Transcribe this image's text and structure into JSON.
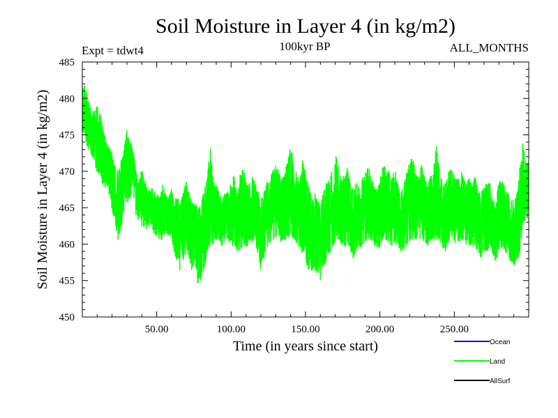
{
  "chart_data": {
    "type": "line",
    "title": "Soil Moisture in Layer 4 (in kg/m2)",
    "subtitle_left": "Expt = tdwt4",
    "subtitle_center": "100kyr BP",
    "subtitle_right": "ALL_MONTHS",
    "xlabel": "Time (in years since start)",
    "ylabel": "Soil Moisture in Layer 4 (in kg/m2)",
    "xlim": [
      0,
      300
    ],
    "ylim": [
      450,
      485
    ],
    "xticks": [
      50,
      100,
      150,
      200,
      250
    ],
    "xtick_labels": [
      "50.00",
      "100.00",
      "150.00",
      "200.00",
      "250.00"
    ],
    "yticks": [
      450,
      455,
      460,
      465,
      470,
      475,
      480,
      485
    ],
    "ytick_labels": [
      "450",
      "455",
      "460",
      "465",
      "470",
      "475",
      "480",
      "485"
    ],
    "legend": [
      {
        "name": "Ocean",
        "color": "#0000ff"
      },
      {
        "name": "Land",
        "color": "#00ff00"
      },
      {
        "name": "AllSurf",
        "color": "#000000"
      }
    ],
    "series": [
      {
        "name": "Land",
        "color": "#00ff00",
        "x": [
          0,
          2,
          4,
          6,
          8,
          10,
          12,
          14,
          16,
          18,
          20,
          22,
          24,
          26,
          28,
          30,
          32,
          34,
          36,
          38,
          40,
          42,
          44,
          46,
          48,
          50,
          52,
          54,
          56,
          58,
          60,
          62,
          64,
          66,
          68,
          70,
          72,
          74,
          76,
          78,
          80,
          82,
          84,
          86,
          88,
          90,
          92,
          94,
          96,
          98,
          100,
          102,
          104,
          106,
          108,
          110,
          112,
          114,
          116,
          118,
          120,
          122,
          124,
          126,
          128,
          130,
          132,
          134,
          136,
          138,
          140,
          142,
          144,
          146,
          148,
          150,
          152,
          154,
          156,
          158,
          160,
          162,
          164,
          166,
          168,
          170,
          172,
          174,
          176,
          178,
          180,
          182,
          184,
          186,
          188,
          190,
          192,
          194,
          196,
          198,
          200,
          202,
          204,
          206,
          208,
          210,
          212,
          214,
          216,
          218,
          220,
          222,
          224,
          226,
          228,
          230,
          232,
          234,
          236,
          238,
          240,
          242,
          244,
          246,
          248,
          250,
          252,
          254,
          256,
          258,
          260,
          262,
          264,
          266,
          268,
          270,
          272,
          274,
          276,
          278,
          280,
          282,
          284,
          286,
          288,
          290,
          292,
          294,
          296,
          298,
          300
        ],
        "min": [
          475.5,
          474.5,
          472.5,
          472.0,
          471.5,
          469.5,
          469.5,
          468.0,
          467.5,
          466.5,
          464.5,
          463.0,
          460.5,
          462.0,
          463.5,
          465.5,
          466.0,
          465.0,
          464.0,
          463.0,
          462.5,
          462.0,
          462.0,
          462.5,
          461.5,
          461.0,
          460.5,
          460.5,
          461.5,
          461.0,
          460.5,
          458.5,
          457.5,
          456.0,
          457.5,
          458.5,
          457.5,
          456.0,
          457.0,
          453.5,
          455.5,
          456.5,
          458.5,
          460.0,
          460.0,
          460.5,
          460.5,
          459.5,
          460.0,
          460.5,
          460.0,
          459.5,
          459.0,
          459.0,
          459.5,
          459.5,
          460.0,
          460.5,
          460.0,
          458.5,
          456.5,
          458.0,
          459.5,
          460.0,
          460.5,
          461.0,
          460.5,
          460.0,
          460.5,
          460.5,
          461.0,
          460.5,
          460.0,
          459.5,
          458.5,
          457.5,
          456.5,
          456.0,
          456.5,
          455.5,
          455.0,
          456.5,
          457.5,
          458.5,
          459.5,
          460.5,
          460.5,
          460.0,
          459.5,
          460.0,
          459.0,
          458.0,
          459.0,
          459.5,
          459.5,
          460.0,
          460.5,
          460.5,
          459.5,
          459.0,
          459.5,
          460.5,
          460.5,
          460.0,
          459.5,
          460.0,
          459.5,
          459.0,
          459.0,
          459.5,
          460.0,
          460.5,
          460.5,
          460.5,
          460.5,
          460.0,
          459.5,
          460.0,
          460.5,
          460.5,
          460.5,
          459.5,
          459.0,
          460.0,
          460.5,
          460.0,
          460.0,
          460.5,
          460.5,
          460.0,
          459.5,
          459.5,
          459.5,
          458.5,
          458.0,
          458.5,
          459.0,
          459.5,
          458.5,
          457.5,
          459.0,
          459.5,
          459.0,
          458.0,
          457.5,
          457.0,
          457.5,
          458.5,
          462.5,
          463.0,
          463.5
        ],
        "max": [
          481.5,
          482.5,
          480.0,
          478.5,
          478.5,
          479.0,
          478.0,
          476.5,
          474.0,
          473.5,
          472.5,
          471.0,
          470.0,
          471.5,
          473.0,
          476.0,
          474.5,
          473.0,
          470.5,
          468.5,
          470.5,
          469.0,
          467.5,
          468.0,
          467.5,
          467.0,
          466.5,
          468.5,
          467.0,
          466.5,
          467.5,
          466.5,
          466.5,
          465.5,
          467.5,
          468.5,
          467.0,
          466.0,
          465.5,
          465.0,
          466.0,
          467.5,
          469.5,
          473.5,
          469.0,
          468.5,
          467.0,
          466.5,
          467.0,
          467.5,
          468.5,
          469.5,
          467.0,
          469.5,
          470.5,
          469.0,
          468.0,
          470.0,
          468.5,
          467.5,
          466.0,
          467.5,
          468.5,
          469.0,
          470.5,
          471.0,
          470.0,
          469.0,
          470.0,
          471.5,
          473.5,
          472.0,
          470.5,
          468.5,
          471.5,
          470.0,
          468.5,
          466.5,
          467.5,
          466.0,
          465.5,
          467.5,
          468.5,
          469.0,
          470.5,
          472.5,
          471.0,
          470.0,
          469.5,
          470.5,
          468.5,
          467.5,
          468.5,
          468.0,
          469.0,
          469.5,
          471.0,
          469.5,
          468.0,
          467.5,
          469.0,
          471.0,
          470.5,
          470.0,
          469.0,
          470.5,
          468.5,
          467.0,
          468.5,
          470.0,
          471.5,
          472.0,
          470.0,
          469.0,
          471.0,
          469.5,
          468.0,
          469.5,
          470.5,
          473.5,
          470.5,
          468.5,
          468.5,
          470.0,
          470.5,
          469.5,
          469.0,
          470.5,
          469.5,
          468.5,
          469.0,
          468.0,
          469.5,
          467.0,
          467.5,
          468.0,
          469.0,
          468.5,
          467.0,
          466.5,
          468.5,
          469.0,
          468.0,
          467.0,
          466.5,
          466.0,
          467.0,
          470.5,
          474.0,
          471.5,
          471.0
        ]
      }
    ]
  }
}
